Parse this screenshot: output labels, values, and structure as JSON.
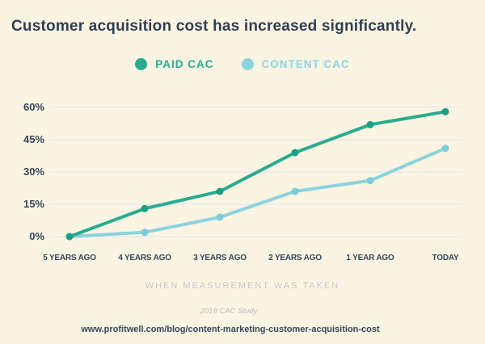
{
  "page": {
    "background_color": "#fbf4e2",
    "title": "Customer acquisition cost  has increased significantly.",
    "title_color": "#2e3f54",
    "xlabel": "WHEN MEASUREMENT WAS TAKEN",
    "source_note": "2018 CAC Study",
    "url": "www.profitwell.com/blog/content-marketing-customer-acquisition-cost"
  },
  "legend": {
    "items": [
      {
        "label": "PAID CAC",
        "color": "#29ab8f"
      },
      {
        "label": "CONTENT CAC",
        "color": "#8bd3de"
      }
    ]
  },
  "chart_data": {
    "type": "line",
    "title": "Customer acquisition cost  has increased significantly.",
    "xlabel": "WHEN MEASUREMENT WAS TAKEN",
    "ylabel": "",
    "categories": [
      "5 YEARS AGO",
      "4 YEARS AGO",
      "3 YEARS AGO",
      "2 YEARS AGO",
      "1 YEAR AGO",
      "TODAY"
    ],
    "series": [
      {
        "name": "PAID CAC",
        "color": "#29ab8f",
        "marker_color": "#1aa185",
        "values": [
          0,
          13,
          21,
          39,
          52,
          58
        ]
      },
      {
        "name": "CONTENT CAC",
        "color": "#8bd3de",
        "marker_color": "#7accd8",
        "values": [
          0,
          2,
          9,
          21,
          26,
          41
        ]
      }
    ],
    "yticks": [
      "0%",
      "15%",
      "30%",
      "45%",
      "60%"
    ],
    "ytick_values": [
      0,
      15,
      30,
      45,
      60
    ],
    "ylim": [
      0,
      62
    ],
    "grid": true,
    "gridline_color": "#e8eaec",
    "legend_position": "top",
    "source_note": "2018 CAC Study"
  }
}
